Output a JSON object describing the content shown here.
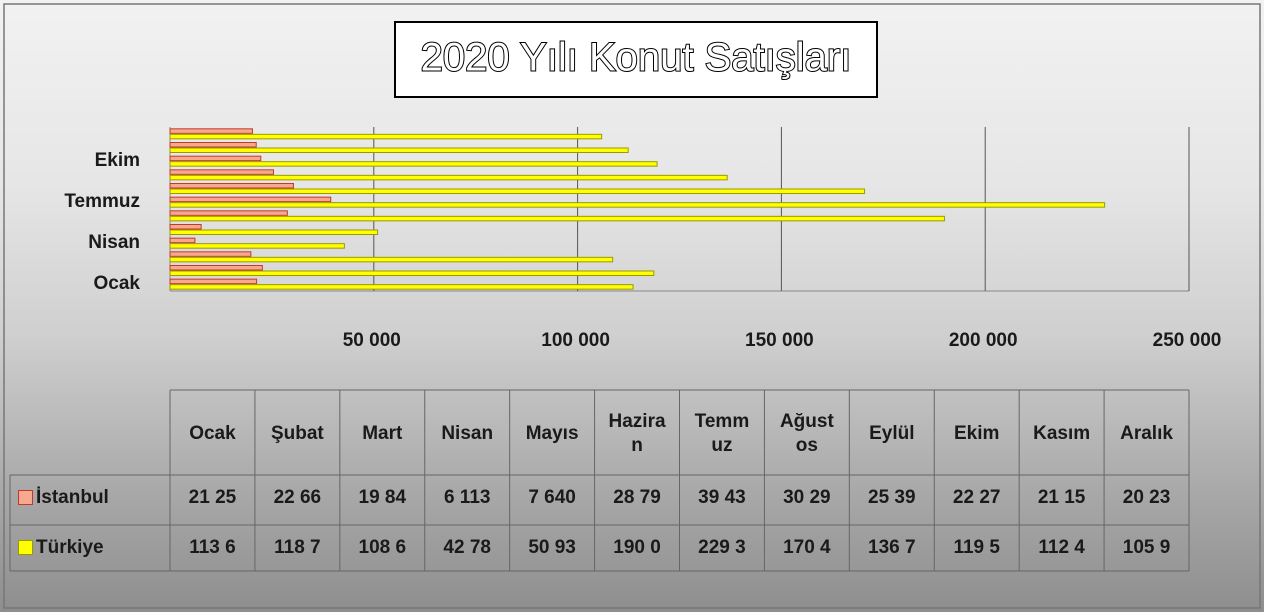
{
  "chart_data": {
    "type": "bar",
    "orientation": "horizontal",
    "title": "2020 Yılı Konut Satışları",
    "categories": [
      "Ocak",
      "Şubat",
      "Mart",
      "Nisan",
      "Mayıs",
      "Haziran",
      "Temmuz",
      "Ağustos",
      "Eylül",
      "Ekim",
      "Kasım",
      "Aralık"
    ],
    "axis_category_labels": [
      0,
      3,
      6,
      9
    ],
    "series": [
      {
        "name": "İstanbul",
        "color": "#f7a98f",
        "edge": "#c0392b",
        "values": [
          21250,
          22660,
          19840,
          6113,
          7640,
          28790,
          39430,
          30290,
          25390,
          22270,
          21150,
          20230
        ],
        "value_labels": [
          "21 25",
          "22 66",
          "19 84",
          "6 113",
          "7 640",
          "28 79",
          "39 43",
          "30 29",
          "25 39",
          "22 27",
          "21 15",
          "20 23"
        ]
      },
      {
        "name": "Türkiye",
        "color": "#ffff00",
        "edge": "#9a9a00",
        "values": [
          113600,
          118700,
          108600,
          42780,
          50930,
          190000,
          229300,
          170400,
          136700,
          119500,
          112400,
          105900
        ],
        "value_labels": [
          "113 6",
          "118 7",
          "108 6",
          "42 78",
          "50 93",
          "190 0",
          "229 3",
          "170 4",
          "136 7",
          "119 5",
          "112 4",
          "105 9"
        ]
      }
    ],
    "xlim": [
      0,
      250000
    ],
    "xticks": [
      {
        "value": 50000,
        "label": "50 000"
      },
      {
        "value": 100000,
        "label": "100 000"
      },
      {
        "value": 150000,
        "label": "150 000"
      },
      {
        "value": 200000,
        "label": "200 000"
      },
      {
        "value": 250000,
        "label": "250 000"
      }
    ],
    "grid": true,
    "data_table": true
  }
}
